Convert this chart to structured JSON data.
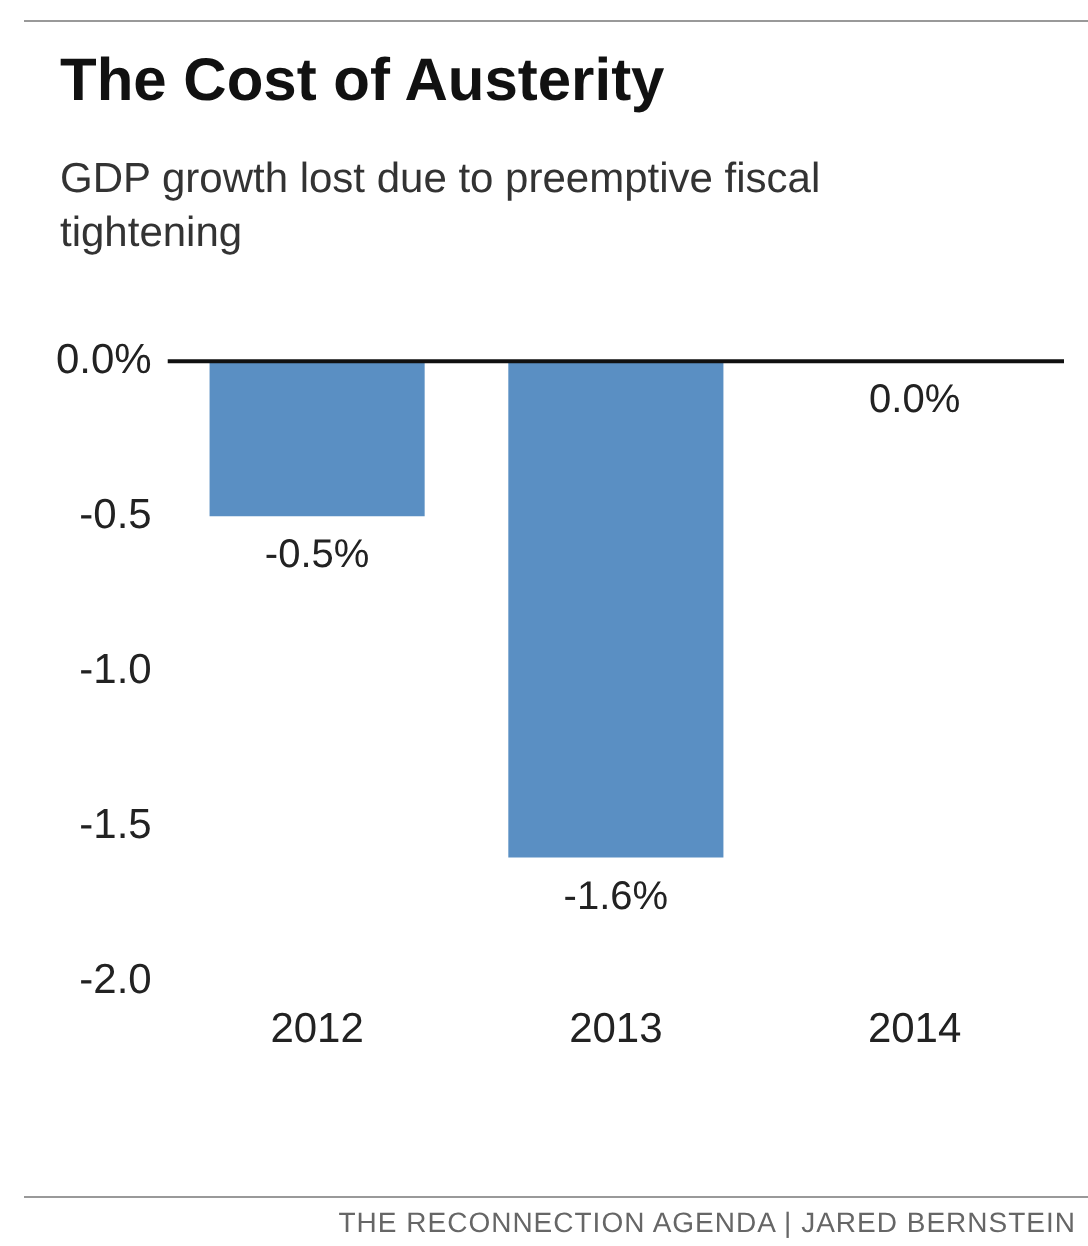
{
  "chart_data": {
    "type": "bar",
    "title": "The Cost of Austerity",
    "subtitle": "GDP growth lost due to preemptive fiscal tightening",
    "categories": [
      "2012",
      "2013",
      "2014"
    ],
    "values": [
      -0.5,
      -1.6,
      0.0
    ],
    "value_labels": [
      "-0.5%",
      "-1.6%",
      "0.0%"
    ],
    "color": "#5a8fc3",
    "ylim": [
      -2,
      0
    ],
    "yticks": [
      {
        "value": 0,
        "label": "0.0%"
      },
      {
        "value": -0.5,
        "label": "-0.5"
      },
      {
        "value": -1,
        "label": "-1.0"
      },
      {
        "value": -1.5,
        "label": "-1.5"
      },
      {
        "value": -2,
        "label": "-2.0"
      }
    ],
    "grid": false,
    "annotations": [
      "THE RECONNECTION AGENDA | JARED BERNSTEIN"
    ]
  }
}
